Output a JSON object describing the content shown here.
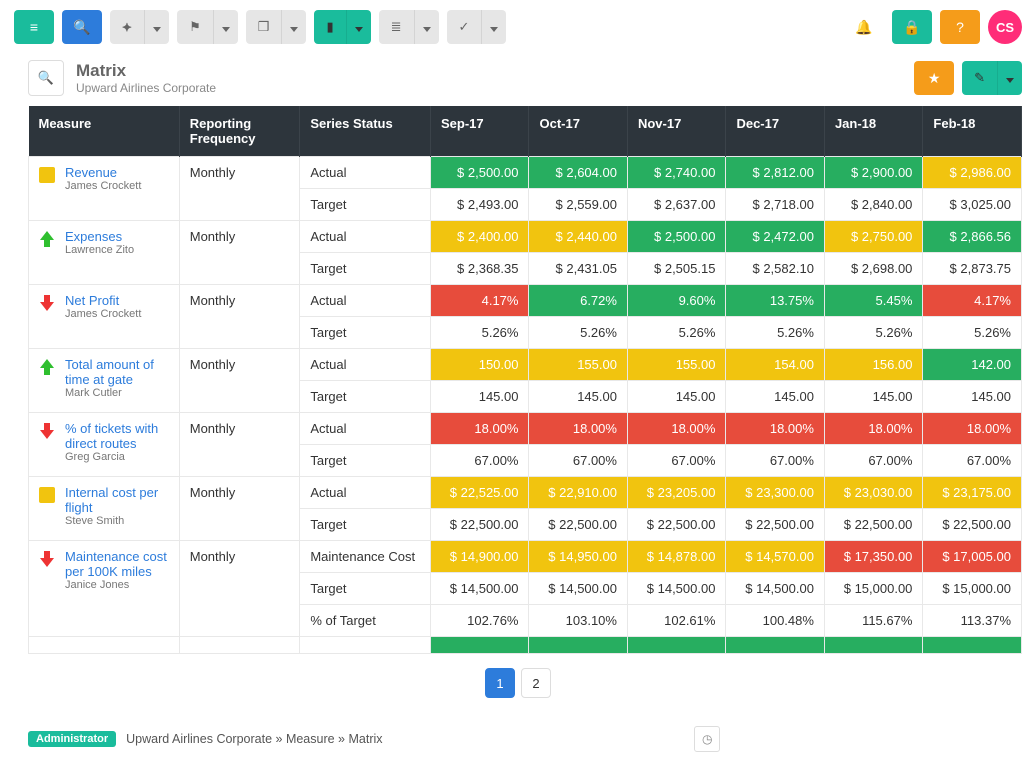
{
  "colors": {
    "header_bg": "#2d353c",
    "green": "#27ae60",
    "yellow": "#f1c40f",
    "red": "#e74c3c",
    "teal": "#1abc9c",
    "blue": "#2d7cdb",
    "orange": "#f59c1a",
    "gray_btn": "#e6e6e6",
    "avatar": "#ff2d78"
  },
  "toolbar": {
    "menu_icon": "≡",
    "search_icon": "🔍",
    "org_icon": "⯌",
    "flag_icon": "⚑",
    "cube_icon": "❒",
    "bar_chart_icon": "▮",
    "bars_icon": "≣",
    "check_icon": "✓",
    "bell_icon": "🔔",
    "lock_icon": "🔒",
    "help_icon": "?",
    "avatar_initials": "CS"
  },
  "header": {
    "title": "Matrix",
    "subtitle": "Upward Airlines Corporate",
    "star_icon": "★",
    "edit_icon": "✎"
  },
  "columns": {
    "measure": "Measure",
    "frequency": "Reporting Frequency",
    "series": "Series Status",
    "months": [
      "Sep-17",
      "Oct-17",
      "Nov-17",
      "Dec-17",
      "Jan-18",
      "Feb-18"
    ]
  },
  "series_labels": {
    "actual": "Actual",
    "target": "Target",
    "maint": "Maintenance Cost",
    "pct_target": "% of Target"
  },
  "freq_monthly": "Monthly",
  "measures": [
    {
      "indicator": "square",
      "name": "Revenue",
      "owner": "James Crockett",
      "actual": {
        "values": [
          "$ 2,500.00",
          "$ 2,604.00",
          "$ 2,740.00",
          "$ 2,812.00",
          "$ 2,900.00",
          "$ 2,986.00"
        ],
        "status": [
          "green",
          "green",
          "green",
          "green",
          "green",
          "yellow"
        ]
      },
      "target": {
        "values": [
          "$ 2,493.00",
          "$ 2,559.00",
          "$ 2,637.00",
          "$ 2,718.00",
          "$ 2,840.00",
          "$ 3,025.00"
        ]
      }
    },
    {
      "indicator": "up",
      "name": "Expenses",
      "owner": "Lawrence Zito",
      "actual": {
        "values": [
          "$ 2,400.00",
          "$ 2,440.00",
          "$ 2,500.00",
          "$ 2,472.00",
          "$ 2,750.00",
          "$ 2,866.56"
        ],
        "status": [
          "yellow",
          "yellow",
          "green",
          "green",
          "yellow",
          "green"
        ]
      },
      "target": {
        "values": [
          "$ 2,368.35",
          "$ 2,431.05",
          "$ 2,505.15",
          "$ 2,582.10",
          "$ 2,698.00",
          "$ 2,873.75"
        ]
      }
    },
    {
      "indicator": "down",
      "name": "Net Profit",
      "owner": "James Crockett",
      "actual": {
        "values": [
          "4.17%",
          "6.72%",
          "9.60%",
          "13.75%",
          "5.45%",
          "4.17%"
        ],
        "status": [
          "red",
          "green",
          "green",
          "green",
          "green",
          "red"
        ]
      },
      "target": {
        "values": [
          "5.26%",
          "5.26%",
          "5.26%",
          "5.26%",
          "5.26%",
          "5.26%"
        ]
      }
    },
    {
      "indicator": "up",
      "name": "Total amount of time at gate",
      "owner": "Mark Cutler",
      "actual": {
        "values": [
          "150.00",
          "155.00",
          "155.00",
          "154.00",
          "156.00",
          "142.00"
        ],
        "status": [
          "yellow",
          "yellow",
          "yellow",
          "yellow",
          "yellow",
          "green"
        ]
      },
      "target": {
        "values": [
          "145.00",
          "145.00",
          "145.00",
          "145.00",
          "145.00",
          "145.00"
        ]
      }
    },
    {
      "indicator": "down",
      "name": "% of tickets with direct routes",
      "owner": "Greg Garcia",
      "actual": {
        "values": [
          "18.00%",
          "18.00%",
          "18.00%",
          "18.00%",
          "18.00%",
          "18.00%"
        ],
        "status": [
          "red",
          "red",
          "red",
          "red",
          "red",
          "red"
        ]
      },
      "target": {
        "values": [
          "67.00%",
          "67.00%",
          "67.00%",
          "67.00%",
          "67.00%",
          "67.00%"
        ]
      }
    },
    {
      "indicator": "square",
      "name": "Internal cost per flight",
      "owner": "Steve Smith",
      "actual": {
        "values": [
          "$ 22,525.00",
          "$ 22,910.00",
          "$ 23,205.00",
          "$ 23,300.00",
          "$ 23,030.00",
          "$ 23,175.00"
        ],
        "status": [
          "yellow",
          "yellow",
          "yellow",
          "yellow",
          "yellow",
          "yellow"
        ]
      },
      "target": {
        "values": [
          "$ 22,500.00",
          "$ 22,500.00",
          "$ 22,500.00",
          "$ 22,500.00",
          "$ 22,500.00",
          "$ 22,500.00"
        ]
      }
    },
    {
      "indicator": "down",
      "name": "Maintenance cost per 100K miles",
      "owner": "Janice Jones",
      "maint": {
        "values": [
          "$ 14,900.00",
          "$ 14,950.00",
          "$ 14,878.00",
          "$ 14,570.00",
          "$ 17,350.00",
          "$ 17,005.00"
        ],
        "status": [
          "yellow",
          "yellow",
          "yellow",
          "yellow",
          "red",
          "red"
        ]
      },
      "target": {
        "values": [
          "$ 14,500.00",
          "$ 14,500.00",
          "$ 14,500.00",
          "$ 14,500.00",
          "$ 15,000.00",
          "$ 15,000.00"
        ]
      },
      "pct_target": {
        "values": [
          "102.76%",
          "103.10%",
          "102.61%",
          "100.48%",
          "115.67%",
          "113.37%"
        ]
      }
    }
  ],
  "pagination": {
    "pages": [
      "1",
      "2"
    ],
    "active": 1
  },
  "footer": {
    "role": "Administrator",
    "crumb1": "Upward Airlines Corporate",
    "sep": " » ",
    "crumb2": "Measure",
    "crumb3": "Matrix",
    "clock_icon": "◷"
  }
}
